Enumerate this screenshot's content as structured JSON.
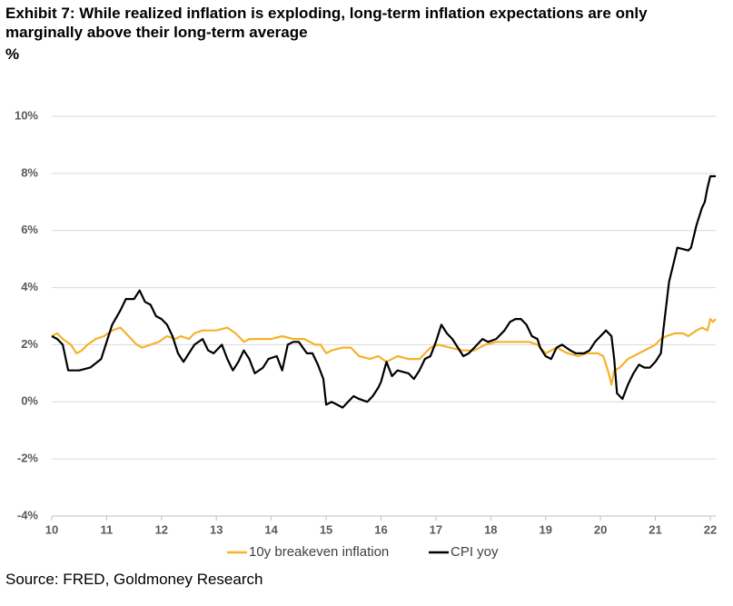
{
  "chart_data": {
    "type": "line",
    "title": "Exhibit 7: While realized inflation is exploding, long-term inflation expectations are only marginally above their long-term average",
    "y_label": "%",
    "source": "Source: FRED, Goldmoney Research",
    "xlim": [
      10,
      22.1
    ],
    "xticks": [
      10,
      11,
      12,
      13,
      14,
      15,
      16,
      17,
      18,
      19,
      20,
      21,
      22
    ],
    "ylim": [
      -4,
      10
    ],
    "yticks": [
      {
        "value": -4,
        "label": "-4%"
      },
      {
        "value": -2,
        "label": "-2%"
      },
      {
        "value": 0,
        "label": "0%"
      },
      {
        "value": 2,
        "label": "2%"
      },
      {
        "value": 4,
        "label": "4%"
      },
      {
        "value": 6,
        "label": "6%"
      },
      {
        "value": 8,
        "label": "8%"
      },
      {
        "value": 10,
        "label": "10%"
      }
    ],
    "grid": true,
    "legend": "bottom",
    "series": [
      {
        "name": "10y breakeven inflation",
        "color": "#f5b22c",
        "x": [
          10.0,
          10.1,
          10.2,
          10.35,
          10.45,
          10.55,
          10.65,
          10.8,
          10.95,
          11.1,
          11.25,
          11.4,
          11.55,
          11.65,
          11.8,
          11.95,
          12.1,
          12.25,
          12.35,
          12.5,
          12.6,
          12.75,
          12.9,
          13.0,
          13.2,
          13.35,
          13.5,
          13.6,
          13.8,
          14.0,
          14.2,
          14.4,
          14.6,
          14.8,
          14.9,
          15.0,
          15.1,
          15.3,
          15.45,
          15.6,
          15.8,
          15.95,
          16.1,
          16.3,
          16.5,
          16.7,
          16.9,
          17.05,
          17.25,
          17.5,
          17.7,
          17.9,
          18.1,
          18.3,
          18.5,
          18.7,
          18.85,
          19.0,
          19.2,
          19.4,
          19.6,
          19.75,
          19.95,
          20.05,
          20.15,
          20.2,
          20.25,
          20.35,
          20.5,
          20.7,
          20.9,
          21.0,
          21.1,
          21.2,
          21.35,
          21.5,
          21.6,
          21.75,
          21.85,
          21.95,
          22.0,
          22.05,
          22.1
        ],
        "values": [
          2.3,
          2.4,
          2.2,
          2.0,
          1.7,
          1.8,
          2.0,
          2.2,
          2.3,
          2.5,
          2.6,
          2.3,
          2.0,
          1.9,
          2.0,
          2.1,
          2.3,
          2.2,
          2.3,
          2.2,
          2.4,
          2.5,
          2.5,
          2.5,
          2.6,
          2.4,
          2.1,
          2.2,
          2.2,
          2.2,
          2.3,
          2.2,
          2.2,
          2.0,
          2.0,
          1.7,
          1.8,
          1.9,
          1.9,
          1.6,
          1.5,
          1.6,
          1.4,
          1.6,
          1.5,
          1.5,
          1.9,
          2.0,
          1.9,
          1.8,
          1.8,
          2.0,
          2.1,
          2.1,
          2.1,
          2.1,
          2.0,
          1.7,
          1.9,
          1.7,
          1.6,
          1.7,
          1.7,
          1.6,
          1.0,
          0.6,
          1.1,
          1.2,
          1.5,
          1.7,
          1.9,
          2.0,
          2.2,
          2.3,
          2.4,
          2.4,
          2.3,
          2.5,
          2.6,
          2.5,
          2.9,
          2.8,
          2.9
        ]
      },
      {
        "name": "CPI yoy",
        "color": "#000000",
        "x": [
          10.0,
          10.1,
          10.2,
          10.3,
          10.5,
          10.7,
          10.9,
          11.0,
          11.1,
          11.25,
          11.35,
          11.5,
          11.6,
          11.7,
          11.8,
          11.9,
          12.0,
          12.1,
          12.2,
          12.3,
          12.4,
          12.5,
          12.6,
          12.75,
          12.85,
          12.95,
          13.1,
          13.2,
          13.3,
          13.4,
          13.5,
          13.6,
          13.7,
          13.85,
          13.95,
          14.1,
          14.2,
          14.3,
          14.4,
          14.5,
          14.65,
          14.75,
          14.85,
          14.95,
          15.0,
          15.1,
          15.2,
          15.3,
          15.4,
          15.5,
          15.6,
          15.75,
          15.85,
          15.95,
          16.0,
          16.1,
          16.2,
          16.3,
          16.5,
          16.6,
          16.7,
          16.8,
          16.9,
          17.0,
          17.1,
          17.2,
          17.3,
          17.4,
          17.5,
          17.6,
          17.7,
          17.85,
          17.95,
          18.1,
          18.25,
          18.35,
          18.45,
          18.55,
          18.65,
          18.75,
          18.85,
          18.9,
          19.0,
          19.1,
          19.2,
          19.3,
          19.45,
          19.55,
          19.7,
          19.8,
          19.9,
          20.0,
          20.1,
          20.2,
          20.25,
          20.3,
          20.4,
          20.5,
          20.6,
          20.7,
          20.8,
          20.9,
          21.0,
          21.1,
          21.15,
          21.25,
          21.35,
          21.4,
          21.6,
          21.65,
          21.75,
          21.85,
          21.9,
          21.95,
          22.0,
          22.1
        ],
        "values": [
          2.3,
          2.2,
          2.0,
          1.1,
          1.1,
          1.2,
          1.5,
          2.1,
          2.7,
          3.2,
          3.6,
          3.6,
          3.9,
          3.5,
          3.4,
          3.0,
          2.9,
          2.7,
          2.3,
          1.7,
          1.4,
          1.7,
          2.0,
          2.2,
          1.8,
          1.7,
          2.0,
          1.5,
          1.1,
          1.4,
          1.8,
          1.5,
          1.0,
          1.2,
          1.5,
          1.6,
          1.1,
          2.0,
          2.1,
          2.1,
          1.7,
          1.7,
          1.3,
          0.8,
          -0.1,
          0.0,
          -0.1,
          -0.2,
          0.0,
          0.2,
          0.1,
          0.0,
          0.2,
          0.5,
          0.7,
          1.4,
          0.9,
          1.1,
          1.0,
          0.8,
          1.1,
          1.5,
          1.6,
          2.1,
          2.7,
          2.4,
          2.2,
          1.9,
          1.6,
          1.7,
          1.9,
          2.2,
          2.1,
          2.2,
          2.5,
          2.8,
          2.9,
          2.9,
          2.7,
          2.3,
          2.2,
          1.9,
          1.6,
          1.5,
          1.9,
          2.0,
          1.8,
          1.7,
          1.7,
          1.8,
          2.1,
          2.3,
          2.5,
          2.3,
          1.5,
          0.3,
          0.1,
          0.6,
          1.0,
          1.3,
          1.2,
          1.2,
          1.4,
          1.7,
          2.6,
          4.2,
          5.0,
          5.4,
          5.3,
          5.4,
          6.2,
          6.8,
          7.0,
          7.5,
          7.9,
          7.9
        ]
      }
    ]
  }
}
